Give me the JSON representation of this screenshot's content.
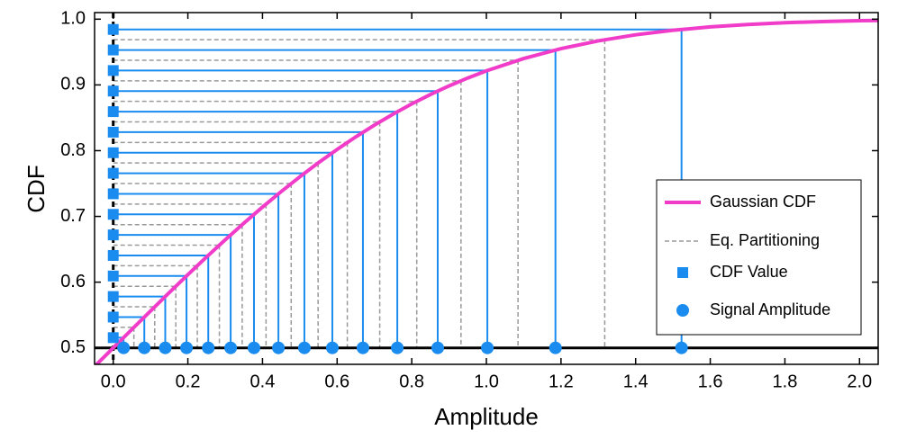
{
  "chart_data": {
    "type": "quantization",
    "xlabel": "Amplitude",
    "ylabel": "CDF",
    "xlim": [
      -0.05,
      2.05
    ],
    "ylim": [
      0.475,
      1.01
    ],
    "xticks": [
      {
        "value": 0,
        "label": "0.0"
      },
      0.2,
      0.4,
      0.6,
      0.8,
      {
        "value": 1,
        "label": "1.0"
      },
      1.2,
      1.4,
      1.6,
      1.8,
      {
        "value": 2,
        "label": "2.0"
      }
    ],
    "yticks": [
      0.5,
      0.6,
      0.7,
      0.8,
      0.9,
      {
        "value": 1,
        "label": "1.0"
      }
    ],
    "legend": "lower right",
    "curve": {
      "name": "Gaussian CDF",
      "color": "#f03cc8",
      "x": [
        -0.05,
        0,
        0.05,
        0.1,
        0.15,
        0.2,
        0.25,
        0.3,
        0.35,
        0.4,
        0.45,
        0.5,
        0.55,
        0.6,
        0.65,
        0.7,
        0.75,
        0.8,
        0.85,
        0.9,
        0.95,
        1.0,
        1.1,
        1.2,
        1.3,
        1.4,
        1.5,
        1.6,
        1.7,
        1.8,
        1.9,
        2.0,
        2.05
      ],
      "values": [
        0.4718,
        0.5,
        0.5282,
        0.5562,
        0.584,
        0.6114,
        0.6382,
        0.6643,
        0.6897,
        0.7142,
        0.7377,
        0.7602,
        0.7816,
        0.8019,
        0.821,
        0.8389,
        0.8556,
        0.8711,
        0.8854,
        0.8985,
        0.9105,
        0.9214,
        0.9401,
        0.9552,
        0.967,
        0.9762,
        0.9831,
        0.9882,
        0.9919,
        0.9946,
        0.9964,
        0.9977,
        0.9981
      ]
    },
    "partition": {
      "name": "Eq. Partitioning",
      "color": "#9a9a9a",
      "x": [
        0.0554,
        0.1112,
        0.1677,
        0.2253,
        0.2844,
        0.3456,
        0.4095,
        0.4769,
        0.549,
        0.6273,
        0.7142,
        0.8134,
        0.932,
        1.0848,
        1.3172
      ],
      "values": [
        0.53125,
        0.5625,
        0.59375,
        0.625,
        0.65625,
        0.6875,
        0.71875,
        0.75,
        0.78125,
        0.8125,
        0.84375,
        0.875,
        0.90625,
        0.9375,
        0.96875
      ]
    },
    "cdf_values": {
      "name": "CDF Value",
      "color": "#1a8cf0",
      "values": [
        0.515625,
        0.546875,
        0.578125,
        0.609375,
        0.640625,
        0.671875,
        0.703125,
        0.734375,
        0.765625,
        0.796875,
        0.828125,
        0.859375,
        0.890625,
        0.921875,
        0.953125,
        0.984375
      ]
    },
    "amplitudes": {
      "name": "Signal Amplitude",
      "color": "#1a8cf0",
      "x": [
        0.0277,
        0.0833,
        0.1394,
        0.1964,
        0.2547,
        0.3147,
        0.3772,
        0.4427,
        0.5123,
        0.5872,
        0.6692,
        0.7613,
        0.8696,
        1.0026,
        1.1851,
        1.523
      ]
    }
  }
}
